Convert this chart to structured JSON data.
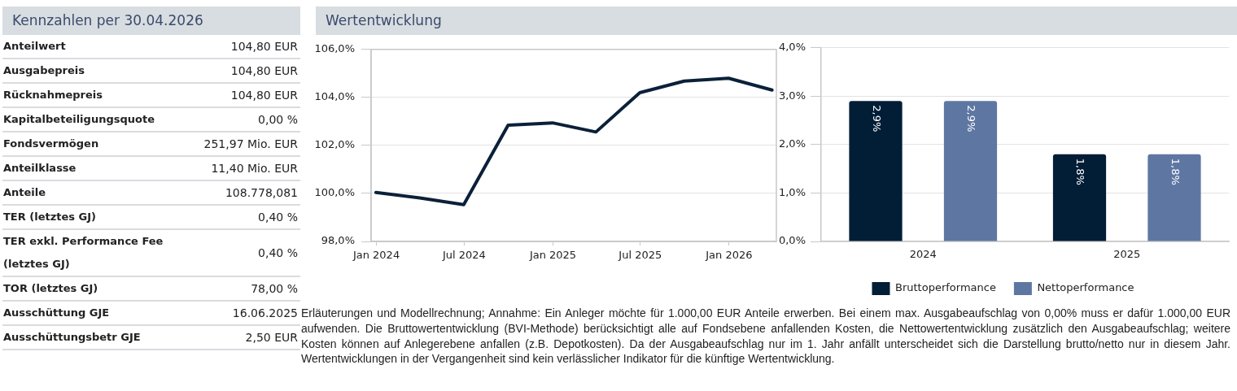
{
  "chart_data": [
    {
      "type": "other",
      "title": "Kennzahlen per 30.04.2026",
      "annotations": [
        "Anteilwert",
        "104,80 EUR",
        "Ausgabepreis",
        "104,80 EUR",
        "Rücknahmepreis",
        "104,80 EUR",
        "Kapitalbeteiligungsquote",
        "0,00 %",
        "Fondsvermögen",
        "251,97 Mio. EUR",
        "Anteilklasse",
        "11,40 Mio. EUR",
        "Anteile",
        "108.778,081",
        "TER (letztes GJ)",
        "0,40 %",
        "TER exkl. Performance Fee (letztes GJ)",
        "0,40 %",
        "TOR (letztes GJ)",
        "78,00 %",
        "Ausschüttung GJE",
        "16.06.2025",
        "Ausschüttungsbetr GJE",
        "2,50 EUR"
      ]
    },
    {
      "type": "line",
      "title": "Wertentwicklung",
      "x": [
        "2023-12-31",
        "2024-03-31",
        "2024-06-30",
        "2024-09-30",
        "2024-12-31",
        "2025-03-31",
        "2025-06-30",
        "2025-09-30",
        "2025-12-31",
        "2026-03-31"
      ],
      "values": [
        100.04,
        99.81,
        99.53,
        102.84,
        102.94,
        102.56,
        104.2,
        104.68,
        104.8,
        104.31
      ],
      "color": "#0b2039",
      "xlim": [
        "2023-12-21",
        "2026-04-09"
      ],
      "xticks": [
        {
          "value": "2024-01-01",
          "label": "Jan 2024"
        },
        {
          "value": "2024-07-01",
          "label": "Jul 2024"
        },
        {
          "value": "2025-01-01",
          "label": "Jan 2025"
        },
        {
          "value": "2025-07-01",
          "label": "Jul 2025"
        },
        {
          "value": "2026-01-01",
          "label": "Jan 2026"
        }
      ],
      "ylim": [
        98,
        106
      ],
      "yticks": [
        {
          "value": 98,
          "label": "98,0%"
        },
        {
          "value": 100,
          "label": "100,0%"
        },
        {
          "value": 102,
          "label": "102,0%"
        },
        {
          "value": 104,
          "label": "104,0%"
        },
        {
          "value": 106,
          "label": "106,0%"
        }
      ],
      "grid": "y",
      "marker": "none",
      "annotations": [
        "Erläuterungen und Modellrechnung; Annahme: Ein Anleger möchte für 1.000,00 EUR Anteile erwerben. Bei einem max. Ausgabeaufschlag von 0,00% muss er dafür 1.000,00 EUR aufwenden. Die Bruttowertentwicklung (BVI-Methode) berücksichtigt alle auf Fondsebene anfallenden Kosten, die Nettowertentwicklung zusätzlich den Ausgabeaufschlag; weitere Kosten können auf Anlegerebene anfallen (z.B. Depotkosten). Da der Ausgabeaufschlag nur im 1. Jahr anfällt unterscheidet sich die Darstellung brutto/netto nur in diesem Jahr. Wertentwicklungen in der Vergangenheit sind kein verlässlicher Indikator für die künftige Wertentwicklung."
      ]
    },
    {
      "type": "bar",
      "categories": [
        "2024",
        "2025"
      ],
      "series": [
        {
          "name": "Bruttoperformance",
          "color": "#021d36",
          "values": [
            2.9,
            1.8
          ],
          "value_labels": [
            "2,9%",
            "1,8%"
          ]
        },
        {
          "name": "Nettoperformance",
          "color": "#5e77a2",
          "values": [
            2.9,
            1.8
          ],
          "value_labels": [
            "2,9%",
            "1,8%"
          ]
        }
      ],
      "ylim": [
        0,
        4
      ],
      "yticks": [
        {
          "value": 0,
          "label": "0,0%"
        },
        {
          "value": 1,
          "label": "1,0%"
        },
        {
          "value": 2,
          "label": "2,0%"
        },
        {
          "value": 3,
          "label": "3,0%"
        },
        {
          "value": 4,
          "label": "4,0%"
        }
      ],
      "grid": "y",
      "legend": "bottom"
    }
  ]
}
